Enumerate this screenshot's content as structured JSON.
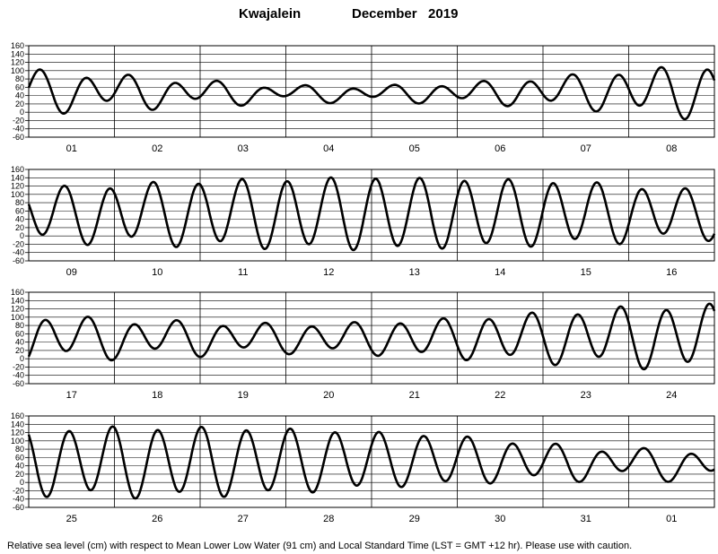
{
  "chart_data": {
    "type": "line",
    "title": {
      "station": "Kwajalein",
      "period": "December   2019"
    },
    "ylabel": "",
    "xlabel": "",
    "y_ticks": [
      160,
      140,
      120,
      100,
      80,
      60,
      40,
      20,
      0,
      -20,
      -40,
      -60
    ],
    "ylim": [
      -60,
      160
    ],
    "grid": true,
    "footer": "Relative sea level (cm) with respect to Mean Lower Low Water (91 cm) and Local Standard Time (LST = GMT +12 hr). Please use with caution.",
    "tide_model": {
      "description_units": "cm",
      "start_hour": 0,
      "hours_per_day": 24,
      "semidiurnal_period_h": 12.42,
      "phase_deg_first_high": 100,
      "mean_cm": [
        52,
        50,
        47,
        45,
        45,
        47,
        50,
        52,
        50,
        55,
        55,
        55,
        55,
        55,
        57,
        55,
        52,
        50,
        50,
        50,
        50,
        50,
        52,
        55,
        52,
        50,
        50,
        52,
        55,
        55,
        50,
        45
      ],
      "semi_amp_cm": [
        45,
        35,
        25,
        15,
        15,
        20,
        30,
        45,
        60,
        65,
        75,
        80,
        85,
        80,
        75,
        65,
        50,
        40,
        35,
        30,
        35,
        45,
        55,
        65,
        75,
        80,
        80,
        75,
        65,
        55,
        40,
        30
      ],
      "diurnal_amp_cm": [
        15,
        15,
        12,
        10,
        8,
        8,
        10,
        12,
        15,
        12,
        10,
        8,
        5,
        5,
        8,
        10,
        15,
        15,
        12,
        10,
        8,
        8,
        12,
        15,
        12,
        10,
        8,
        6,
        5,
        5,
        10,
        15
      ]
    },
    "panels": [
      {
        "days": [
          "01",
          "02",
          "03",
          "04",
          "05",
          "06",
          "07",
          "08"
        ],
        "start_day": 0
      },
      {
        "days": [
          "09",
          "10",
          "11",
          "12",
          "13",
          "14",
          "15",
          "16"
        ],
        "start_day": 8
      },
      {
        "days": [
          "17",
          "18",
          "19",
          "20",
          "21",
          "22",
          "23",
          "24"
        ],
        "start_day": 16
      },
      {
        "days": [
          "25",
          "26",
          "27",
          "28",
          "29",
          "30",
          "31",
          "01"
        ],
        "start_day": 24
      }
    ]
  }
}
